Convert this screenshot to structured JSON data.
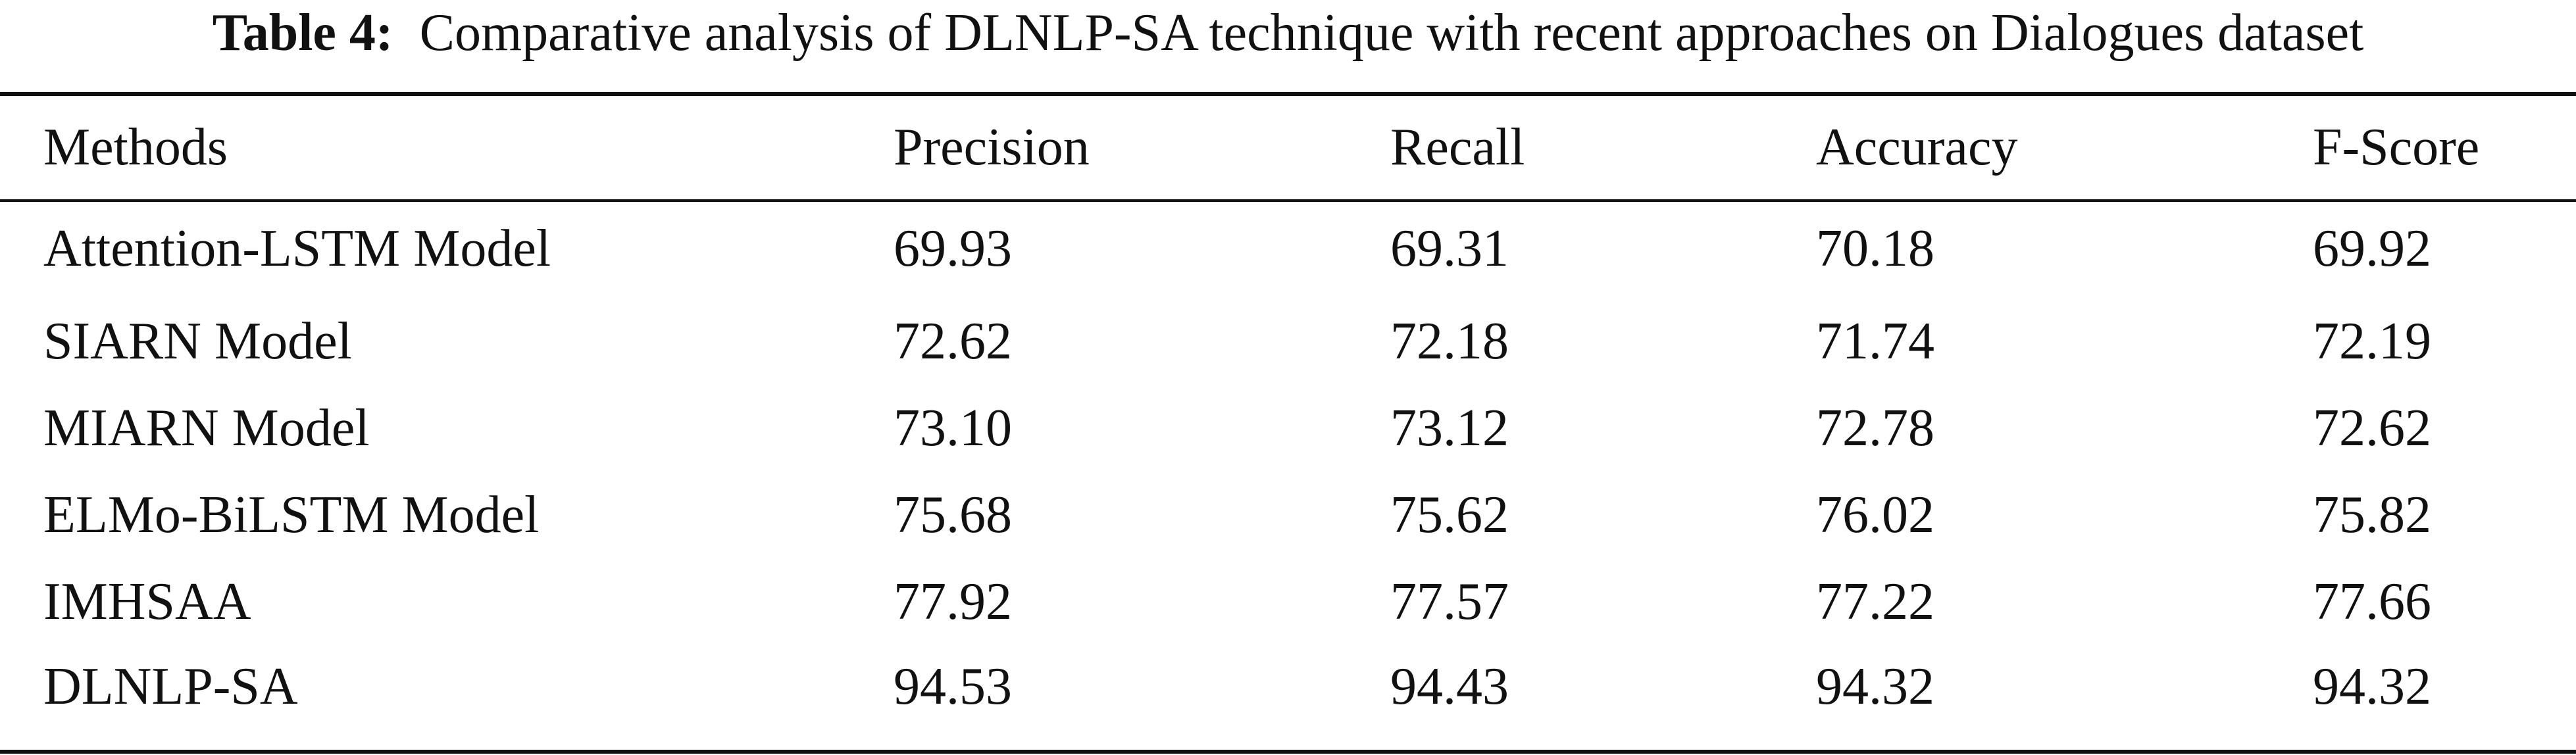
{
  "caption": {
    "label": "Table 4:",
    "text": "Comparative analysis of DLNLP-SA technique with recent approaches on Dialogues dataset"
  },
  "table": {
    "headers": [
      "Methods",
      "Precision",
      "Recall",
      "Accuracy",
      "F-Score"
    ],
    "rows": [
      [
        "Attention-LSTM Model",
        "69.93",
        "69.31",
        "70.18",
        "69.92"
      ],
      [
        "SIARN Model",
        "72.62",
        "72.18",
        "71.74",
        "72.19"
      ],
      [
        "MIARN Model",
        "73.10",
        "73.12",
        "72.78",
        "72.62"
      ],
      [
        "ELMo-BiLSTM Model",
        "75.68",
        "75.62",
        "76.02",
        "75.82"
      ],
      [
        "IMHSAA",
        "77.92",
        "77.57",
        "77.22",
        "77.66"
      ],
      [
        "DLNLP-SA",
        "94.53",
        "94.43",
        "94.32",
        "94.32"
      ]
    ]
  }
}
